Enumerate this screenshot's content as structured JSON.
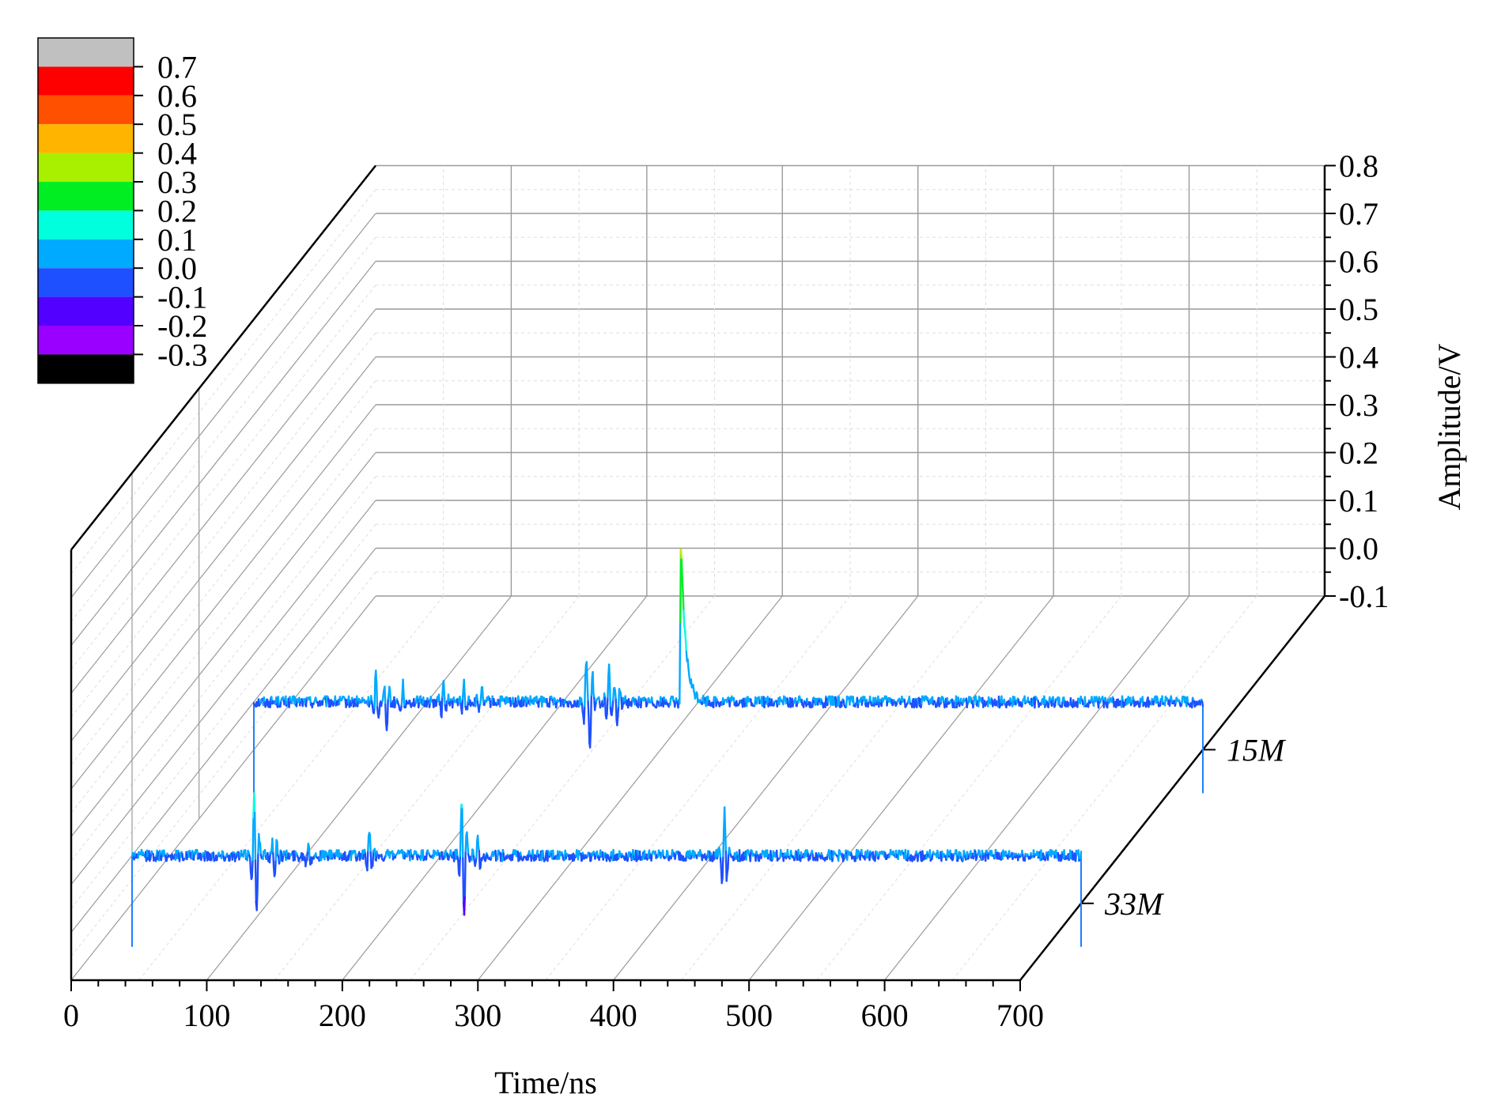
{
  "chart_data": {
    "type": "line",
    "subtype": "3d-waterfall",
    "title": "",
    "xlabel": "Time/ns",
    "zlabel": "Amplitude/V",
    "x_ticks": [
      "0",
      "100",
      "200",
      "300",
      "400",
      "500",
      "600",
      "700"
    ],
    "z_ticks": [
      "-0.1",
      "0.0",
      "0.1",
      "0.2",
      "0.3",
      "0.4",
      "0.5",
      "0.6",
      "0.7",
      "0.8"
    ],
    "xlim": [
      0,
      700
    ],
    "zlim": [
      -0.1,
      0.8
    ],
    "grid": true,
    "series": [
      {
        "name": "15M",
        "x_range": [
          0,
          700
        ],
        "baseline": 0.0,
        "noise": 0.012,
        "features": [
          {
            "x": 90,
            "amp": 0.06
          },
          {
            "x": 98,
            "amp": -0.05
          },
          {
            "x": 110,
            "amp": 0.04
          },
          {
            "x": 140,
            "amp": 0.04
          },
          {
            "x": 155,
            "amp": 0.04
          },
          {
            "x": 168,
            "amp": 0.03
          },
          {
            "x": 245,
            "amp": 0.08
          },
          {
            "x": 248,
            "amp": -0.1
          },
          {
            "x": 262,
            "amp": 0.07
          },
          {
            "x": 268,
            "amp": -0.05
          },
          {
            "x": 315,
            "amp": 0.33
          }
        ]
      },
      {
        "name": "33M",
        "x_range": [
          0,
          700
        ],
        "baseline": 0.0,
        "noise": 0.012,
        "features": [
          {
            "x": 90,
            "amp": 0.09
          },
          {
            "x": 92,
            "amp": -0.06
          },
          {
            "x": 105,
            "amp": -0.05
          },
          {
            "x": 130,
            "amp": 0.03
          },
          {
            "x": 175,
            "amp": 0.05
          },
          {
            "x": 243,
            "amp": 0.06
          },
          {
            "x": 245,
            "amp": -0.09
          },
          {
            "x": 255,
            "amp": 0.04
          },
          {
            "x": 437,
            "amp": 0.09
          }
        ]
      }
    ],
    "colorbar": {
      "ticks": [
        "0.7",
        "0.6",
        "0.5",
        "0.4",
        "0.3",
        "0.2",
        "0.1",
        "0.0",
        "-0.1",
        "-0.2",
        "-0.3"
      ],
      "colors": [
        "#c0c0c0",
        "#ff0000",
        "#ff5000",
        "#ffb400",
        "#a8f000",
        "#00ee22",
        "#00ffdd",
        "#00aaff",
        "#1e50ff",
        "#5200ff",
        "#9a00ff",
        "#000000"
      ]
    }
  }
}
